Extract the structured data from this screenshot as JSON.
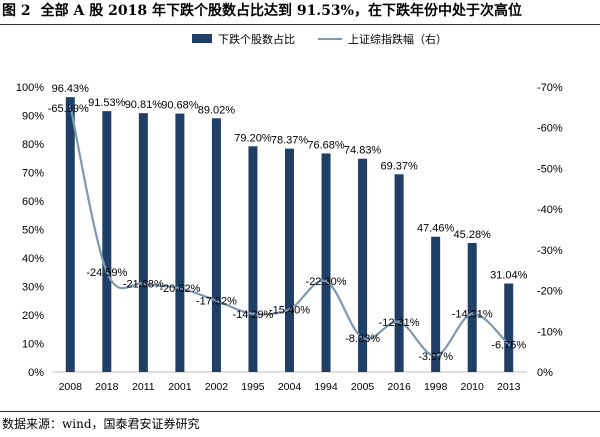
{
  "title": {
    "figure_label": "图 2",
    "text": "全部 A 股 2018 年下跌个股数占比达到 91.53%，在下跌年份中处于次高位"
  },
  "source_note": "数据来源：wind，国泰君安证券研究",
  "colors": {
    "bar": "#1f3f66",
    "line": "#7f98b2"
  },
  "chart_data": {
    "type": "bar",
    "categories": [
      "2008",
      "2018",
      "2011",
      "2001",
      "2002",
      "1995",
      "2004",
      "1994",
      "2005",
      "2016",
      "1998",
      "2010",
      "2013"
    ],
    "series": [
      {
        "name": "下跌个股数占比",
        "type": "bar",
        "axis": "left",
        "values": [
          96.43,
          91.53,
          90.81,
          90.68,
          89.02,
          79.2,
          78.37,
          76.68,
          74.83,
          69.37,
          47.46,
          45.28,
          31.04
        ],
        "labels": [
          "96.43%",
          "91.53%",
          "90.81%",
          "90.68%",
          "89.02%",
          "79.20%",
          "78.37%",
          "76.68%",
          "74.83%",
          "69.37%",
          "47.46%",
          "45.28%",
          "31.04%"
        ]
      },
      {
        "name": "上证综指跌幅（右）",
        "type": "line",
        "axis": "right",
        "values": [
          -65.39,
          -24.59,
          -21.68,
          -20.62,
          -17.52,
          -14.29,
          -15.4,
          -22.3,
          -8.33,
          -12.31,
          -3.97,
          -14.31,
          -6.75
        ],
        "labels": [
          "-65.39%",
          "-24.59%",
          "-21.68%",
          "-20.62%",
          "-17.52%",
          "-14.29%",
          "-15.40%",
          "-22.30%",
          "-8.33%",
          "-12.31%",
          "-3.97%",
          "-14.31%",
          "-6.75%"
        ]
      }
    ],
    "y_left": {
      "min": 0,
      "max": 100,
      "ticks": [
        "0%",
        "10%",
        "20%",
        "30%",
        "40%",
        "50%",
        "60%",
        "70%",
        "80%",
        "90%",
        "100%"
      ]
    },
    "y_right": {
      "min": 0,
      "max": -70,
      "ticks": [
        "0%",
        "-10%",
        "-20%",
        "-30%",
        "-40%",
        "-50%",
        "-60%",
        "-70%"
      ]
    },
    "legend_position": "top-center",
    "grid": false
  }
}
